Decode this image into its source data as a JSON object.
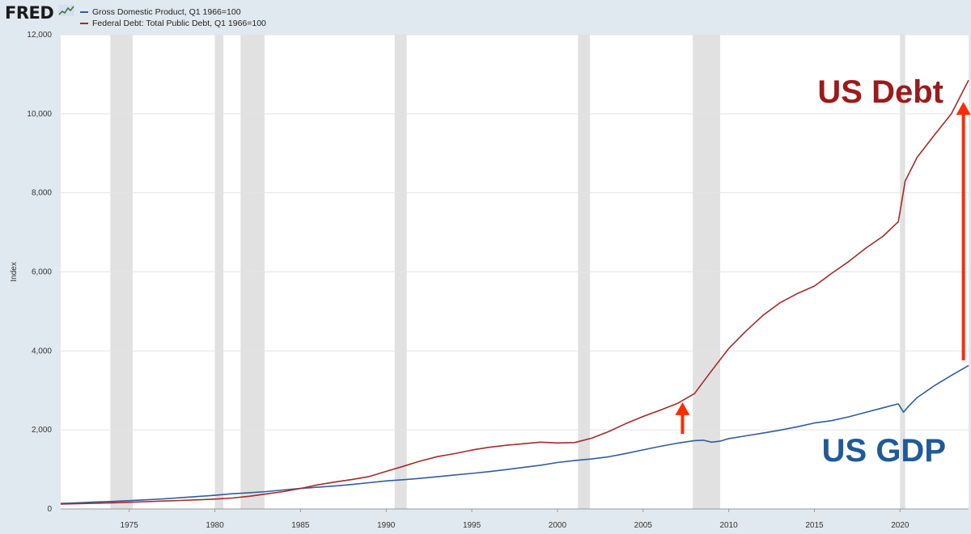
{
  "header": {
    "logo_text": "FRED"
  },
  "legend": [
    {
      "label": "Gross Domestic Product, Q1 1966=100",
      "color": "#2f5d9e"
    },
    {
      "label": "Federal Debt: Total Public Debt, Q1 1966=100",
      "color": "#a52a2a"
    }
  ],
  "annotations": {
    "debt_label": "US Debt",
    "gdp_label": "US GDP",
    "debt_color": "#9b1b1b",
    "gdp_color": "#1f5a9a",
    "arrow_color": "#ff2a00"
  },
  "chart_data": {
    "type": "line",
    "ylabel": "Index",
    "ylim": [
      0,
      12000
    ],
    "xlim": [
      1971,
      2024
    ],
    "yticks": [
      0,
      2000,
      4000,
      6000,
      8000,
      10000,
      12000
    ],
    "ytick_labels": [
      "0",
      "2,000",
      "4,000",
      "6,000",
      "8,000",
      "10,000",
      "12,000"
    ],
    "xticks": [
      1975,
      1980,
      1985,
      1990,
      1995,
      2000,
      2005,
      2010,
      2015,
      2020
    ],
    "recessions": [
      [
        1973.9,
        1975.2
      ],
      [
        1980.0,
        1980.5
      ],
      [
        1981.5,
        1982.9
      ],
      [
        1990.5,
        1991.2
      ],
      [
        2001.2,
        2001.9
      ],
      [
        2007.9,
        2009.5
      ],
      [
        2020.0,
        2020.3
      ]
    ],
    "series": [
      {
        "name": "Gross Domestic Product, Q1 1966=100",
        "color": "#2f5d9e",
        "x": [
          1971,
          1972,
          1973,
          1974,
          1975,
          1976,
          1977,
          1978,
          1979,
          1980,
          1981,
          1982,
          1983,
          1984,
          1985,
          1986,
          1987,
          1988,
          1989,
          1990,
          1991,
          1992,
          1993,
          1994,
          1995,
          1996,
          1997,
          1998,
          1999,
          2000,
          2001,
          2002,
          2003,
          2004,
          2005,
          2006,
          2007,
          2008,
          2008.5,
          2009,
          2009.5,
          2010,
          2011,
          2012,
          2013,
          2014,
          2015,
          2016,
          2017,
          2018,
          2019,
          2019.9,
          2020.2,
          2020.5,
          2021,
          2022,
          2023,
          2024
        ],
        "y": [
          140,
          155,
          175,
          190,
          210,
          230,
          255,
          285,
          315,
          345,
          385,
          410,
          440,
          480,
          520,
          550,
          580,
          620,
          665,
          710,
          740,
          775,
          815,
          860,
          900,
          945,
          995,
          1050,
          1105,
          1175,
          1225,
          1265,
          1320,
          1405,
          1495,
          1585,
          1665,
          1730,
          1740,
          1690,
          1715,
          1780,
          1850,
          1920,
          1995,
          2080,
          2175,
          2235,
          2330,
          2445,
          2560,
          2660,
          2450,
          2600,
          2820,
          3120,
          3380,
          3630
        ]
      },
      {
        "name": "Federal Debt: Total Public Debt, Q1 1966=100",
        "color": "#a52a2a",
        "x": [
          1971,
          1972,
          1973,
          1974,
          1975,
          1976,
          1977,
          1978,
          1979,
          1980,
          1981,
          1982,
          1983,
          1984,
          1985,
          1986,
          1987,
          1988,
          1989,
          1990,
          1991,
          1992,
          1993,
          1994,
          1995,
          1996,
          1997,
          1998,
          1999,
          2000,
          2001,
          2002,
          2003,
          2004,
          2005,
          2006,
          2007,
          2008,
          2009,
          2010,
          2011,
          2012,
          2013,
          2014,
          2015,
          2016,
          2017,
          2018,
          2019,
          2019.9,
          2020.3,
          2021,
          2022,
          2023,
          2024
        ],
        "y": [
          125,
          135,
          145,
          155,
          170,
          185,
          200,
          215,
          230,
          250,
          275,
          320,
          380,
          440,
          520,
          610,
          680,
          745,
          820,
          950,
          1080,
          1215,
          1325,
          1400,
          1490,
          1560,
          1610,
          1650,
          1690,
          1670,
          1680,
          1790,
          1960,
          2160,
          2340,
          2500,
          2670,
          2920,
          3500,
          4060,
          4500,
          4900,
          5220,
          5450,
          5640,
          5960,
          6260,
          6600,
          6900,
          7270,
          8300,
          8900,
          9460,
          10000,
          10850
        ]
      }
    ]
  }
}
